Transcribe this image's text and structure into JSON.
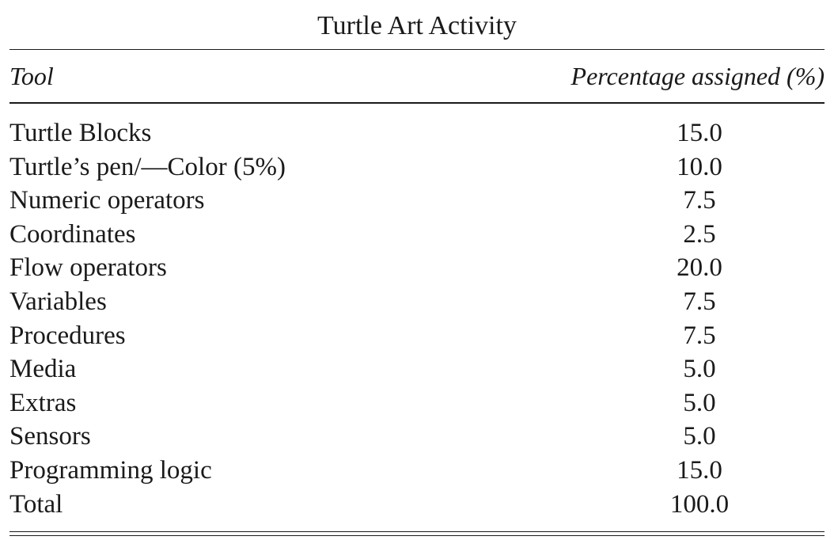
{
  "table": {
    "caption": "Turtle Art Activity",
    "headers": {
      "tool": "Tool",
      "percentage": "Percentage assigned (%)"
    },
    "rows": [
      {
        "tool": "Turtle Blocks",
        "percentage": "15.0"
      },
      {
        "tool": "Turtle’s pen/—Color (5%)",
        "percentage": "10.0"
      },
      {
        "tool": "Numeric operators",
        "percentage": "7.5"
      },
      {
        "tool": "Coordinates",
        "percentage": "2.5"
      },
      {
        "tool": "Flow operators",
        "percentage": "20.0"
      },
      {
        "tool": "Variables",
        "percentage": "7.5"
      },
      {
        "tool": "Procedures",
        "percentage": "7.5"
      },
      {
        "tool": "Media",
        "percentage": "5.0"
      },
      {
        "tool": "Extras",
        "percentage": "5.0"
      },
      {
        "tool": "Sensors",
        "percentage": "5.0"
      },
      {
        "tool": "Programming logic",
        "percentage": "15.0"
      },
      {
        "tool": "Total",
        "percentage": "100.0"
      }
    ]
  }
}
